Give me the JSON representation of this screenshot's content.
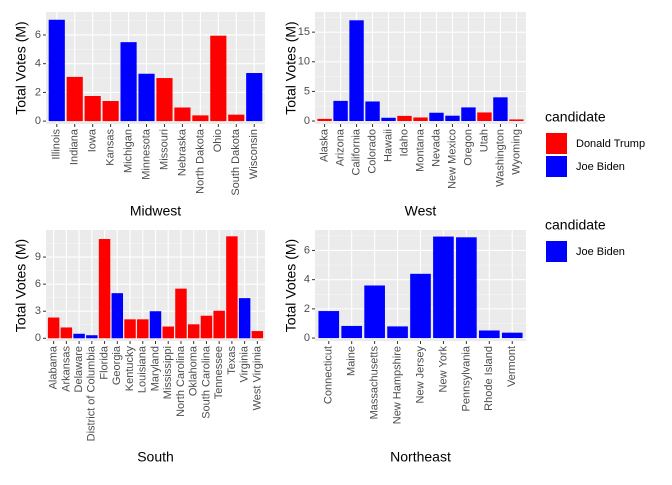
{
  "chart_data": [
    {
      "type": "bar",
      "x_label": "Midwest",
      "y_label": "Total Votes (M)",
      "legend_title": "candidate",
      "categories": [
        "Illinois",
        "Indiana",
        "Iowa",
        "Kansas",
        "Michigan",
        "Minnesota",
        "Missouri",
        "Nebraska",
        "North Dakota",
        "Ohio",
        "South Dakota",
        "Wisconsin"
      ],
      "series": [
        {
          "name": "Donald Trump",
          "color": "#ff0000",
          "values": [
            null,
            3.08,
            1.75,
            1.4,
            null,
            null,
            3.0,
            0.95,
            0.4,
            5.95,
            0.45,
            null
          ]
        },
        {
          "name": "Joe Biden",
          "color": "#0000ff",
          "values": [
            7.06,
            null,
            null,
            null,
            5.5,
            3.3,
            null,
            null,
            null,
            null,
            null,
            3.35
          ]
        }
      ],
      "ylim": [
        -0.2,
        7.6
      ],
      "yticks": [
        0,
        2,
        4,
        6
      ],
      "grid": true
    },
    {
      "type": "bar",
      "x_label": "West",
      "y_label": "Total Votes (M)",
      "categories": [
        "Alaska",
        "Arizona",
        "California",
        "Colorado",
        "Hawaii",
        "Idaho",
        "Montana",
        "Nevada",
        "New Mexico",
        "Oregon",
        "Utah",
        "Washington",
        "Wyoming"
      ],
      "series": [
        {
          "name": "Donald Trump",
          "color": "#ff0000",
          "values": [
            0.36,
            null,
            null,
            null,
            null,
            0.87,
            0.6,
            null,
            null,
            null,
            1.45,
            null,
            0.27
          ]
        },
        {
          "name": "Joe Biden",
          "color": "#0000ff",
          "values": [
            null,
            3.4,
            17.0,
            3.3,
            0.55,
            null,
            null,
            1.4,
            0.9,
            2.3,
            null,
            4.0,
            null
          ]
        }
      ],
      "ylim": [
        -0.5,
        18.4
      ],
      "yticks": [
        0,
        5,
        10,
        15
      ],
      "grid": true
    },
    {
      "type": "bar",
      "x_label": "South",
      "y_label": "Total Votes (M)",
      "categories": [
        "Alabama",
        "Arkansas",
        "Delaware",
        "District of Columbia",
        "Florida",
        "Georgia",
        "Kentucky",
        "Louisiana",
        "Maryland",
        "Mississippi",
        "North Carolina",
        "Oklahoma",
        "South Carolina",
        "Tennessee",
        "Texas",
        "Virginia",
        "West Virginia"
      ],
      "series": [
        {
          "name": "Donald Trump",
          "color": "#ff0000",
          "values": [
            2.3,
            1.2,
            null,
            null,
            11.0,
            null,
            2.1,
            2.1,
            null,
            1.3,
            5.5,
            1.55,
            2.5,
            3.05,
            11.3,
            null,
            0.8
          ]
        },
        {
          "name": "Joe Biden",
          "color": "#0000ff",
          "values": [
            null,
            null,
            0.5,
            0.34,
            null,
            5.0,
            null,
            null,
            3.0,
            null,
            null,
            null,
            null,
            null,
            null,
            4.45,
            null
          ]
        }
      ],
      "ylim": [
        -0.3,
        12.0
      ],
      "yticks": [
        0,
        3,
        6,
        9
      ],
      "grid": true
    },
    {
      "type": "bar",
      "x_label": "Northeast",
      "y_label": "Total Votes (M)",
      "legend_title": "candidate",
      "categories": [
        "Connecticut",
        "Maine",
        "Massachusetts",
        "New Hampshire",
        "New Jersey",
        "New York",
        "Pennsylvania",
        "Rhode Island",
        "Vermont"
      ],
      "series": [
        {
          "name": "Joe Biden",
          "color": "#0000ff",
          "values": [
            1.85,
            0.83,
            3.6,
            0.8,
            4.4,
            6.95,
            6.9,
            0.52,
            0.37
          ]
        }
      ],
      "ylim": [
        -0.2,
        7.4
      ],
      "yticks": [
        0,
        2,
        4,
        6
      ],
      "grid": true
    }
  ]
}
